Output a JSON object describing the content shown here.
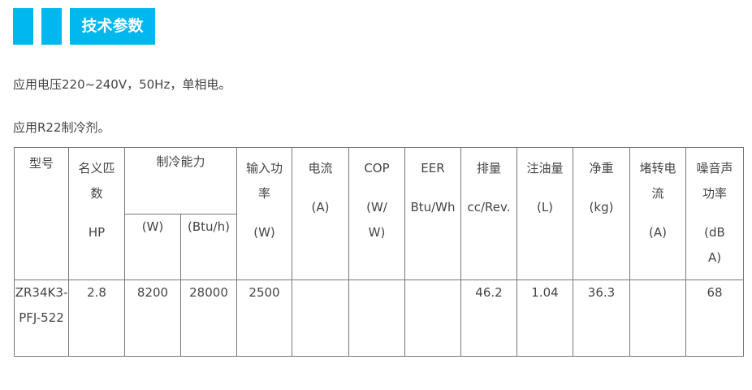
{
  "section_title": "技术参数",
  "paragraphs": [
    "应用电压220~240V，50Hz，单相电。",
    "应用R22制冷剂。"
  ],
  "table": {
    "headers": [
      [
        "型号"
      ],
      [
        "名义匹",
        "数",
        "HP"
      ],
      [
        "制冷能力"
      ],
      [
        "输入功",
        "率",
        "(W)"
      ],
      [
        "电流",
        "(A)"
      ],
      [
        "COP",
        "(W/",
        "W)"
      ],
      [
        "EER",
        "Btu/Wh"
      ],
      [
        "排量",
        "cc/Rev."
      ],
      [
        "注油量",
        "(L)"
      ],
      [
        "净重",
        "(kg)"
      ],
      [
        "堵转电",
        "流",
        "(A)"
      ],
      [
        "噪音声",
        "功率",
        "(dB",
        "A)"
      ]
    ],
    "sub_headers": [
      "(W)",
      "(Btu/h)"
    ],
    "rows": [
      [
        "ZR34K3-PFJ-522",
        "2.8",
        "8200",
        "28000",
        "2500",
        "",
        "",
        "",
        "46.2",
        "1.04",
        "36.3",
        "",
        "68"
      ]
    ]
  },
  "colors": {
    "accent": "#00b7ee"
  }
}
